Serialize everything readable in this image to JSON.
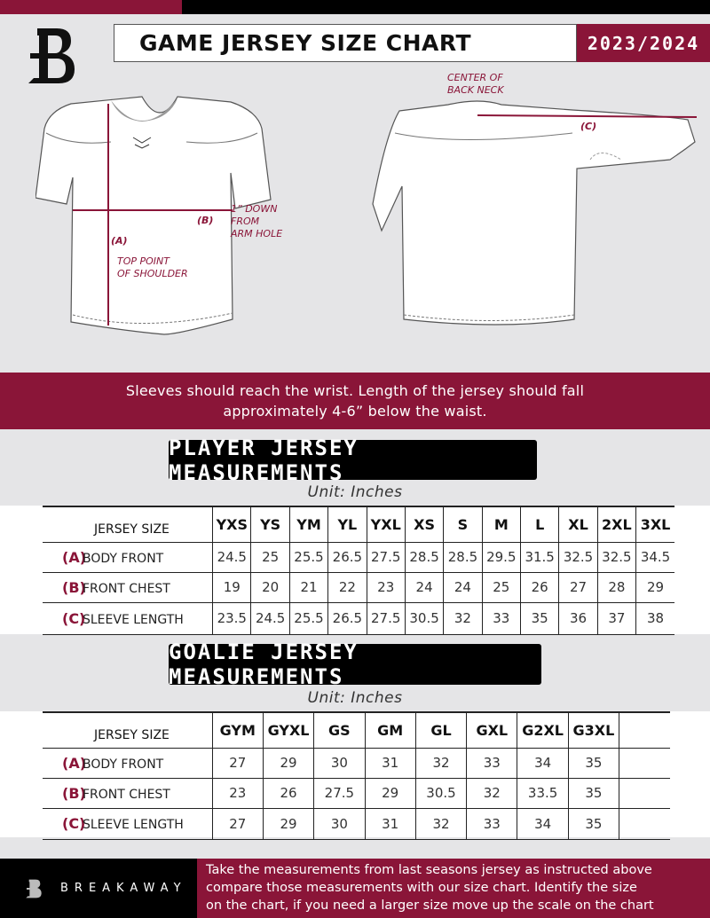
{
  "header": {
    "title": "GAME JERSEY SIZE CHART",
    "season": "2023/2024"
  },
  "diagram": {
    "center_back_neck": [
      "CENTER OF",
      "BACK NECK"
    ],
    "label_c": "(C)",
    "label_b": "(B)",
    "label_a": "(A)",
    "down_note": [
      "1” DOWN",
      "FROM",
      "ARM HOLE"
    ],
    "shoulder_note": [
      "TOP POINT",
      "OF SHOULDER"
    ]
  },
  "notice": [
    "Sleeves should reach the wrist. Length of the jersey should fall",
    "approximately 4-6” below the waist."
  ],
  "player": {
    "title": "PLAYER JERSEY MEASUREMENTS",
    "unit": "Unit: Inches",
    "size_header": "JERSEY SIZE",
    "sizes": [
      "YXS",
      "YS",
      "YM",
      "YL",
      "YXL",
      "XS",
      "S",
      "M",
      "L",
      "XL",
      "2XL",
      "3XL"
    ],
    "rows": [
      {
        "marker": "(A)",
        "label": "BODY FRONT",
        "values": [
          "24.5",
          "25",
          "25.5",
          "26.5",
          "27.5",
          "28.5",
          "28.5",
          "29.5",
          "31.5",
          "32.5",
          "32.5",
          "34.5"
        ]
      },
      {
        "marker": "(B)",
        "label": "FRONT CHEST",
        "values": [
          "19",
          "20",
          "21",
          "22",
          "23",
          "24",
          "24",
          "25",
          "26",
          "27",
          "28",
          "29"
        ]
      },
      {
        "marker": "(C)",
        "label": "SLEEVE LENGTH",
        "values": [
          "23.5",
          "24.5",
          "25.5",
          "26.5",
          "27.5",
          "30.5",
          "32",
          "33",
          "35",
          "36",
          "37",
          "38"
        ]
      }
    ]
  },
  "goalie": {
    "title": "GOALIE JERSEY MEASUREMENTS",
    "unit": "Unit: Inches",
    "size_header": "JERSEY SIZE",
    "sizes": [
      "GYM",
      "GYXL",
      "GS",
      "GM",
      "GL",
      "GXL",
      "G2XL",
      "G3XL",
      ""
    ],
    "rows": [
      {
        "marker": "(A)",
        "label": "BODY FRONT",
        "values": [
          "27",
          "29",
          "30",
          "31",
          "32",
          "33",
          "34",
          "35",
          ""
        ]
      },
      {
        "marker": "(B)",
        "label": "FRONT CHEST",
        "values": [
          "23",
          "26",
          "27.5",
          "29",
          "30.5",
          "32",
          "33.5",
          "35",
          ""
        ]
      },
      {
        "marker": "(C)",
        "label": "SLEEVE LENGTH",
        "values": [
          "27",
          "29",
          "30",
          "31",
          "32",
          "33",
          "34",
          "35",
          ""
        ]
      }
    ]
  },
  "footer": {
    "brand": "BREAKAWAY",
    "text": [
      "Take the measurements from last seasons jersey as instructed above",
      "compare those measurements  with our size chart. Identify the size",
      "on the chart, if you need a larger size move up the scale on the chart"
    ]
  },
  "colors": {
    "accent": "#8a1538",
    "dark": "#000000",
    "background": "#e5e5e7"
  }
}
